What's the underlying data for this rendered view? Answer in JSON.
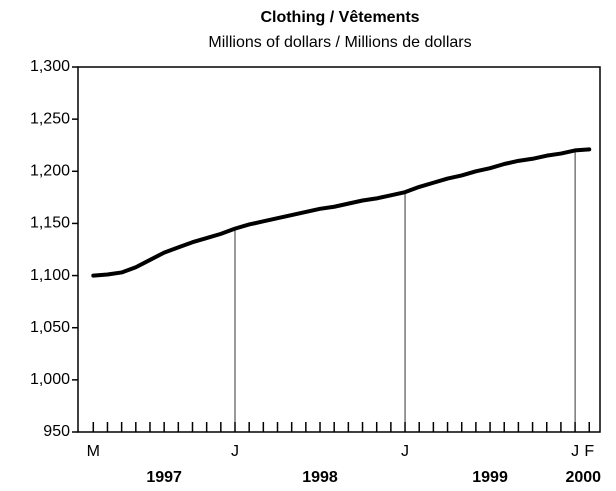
{
  "chart_data": {
    "type": "line",
    "title": "Clothing / Vêtements",
    "subtitle": "Millions of dollars / Millions de dollars",
    "categories": [
      "M",
      null,
      null,
      null,
      null,
      null,
      null,
      null,
      null,
      null,
      "J",
      null,
      null,
      null,
      null,
      null,
      null,
      null,
      null,
      null,
      null,
      null,
      "J",
      null,
      null,
      null,
      null,
      null,
      null,
      null,
      null,
      null,
      null,
      null,
      "J",
      "F"
    ],
    "year_labels": [
      "1997",
      "1998",
      "1999",
      "2000"
    ],
    "series": [
      {
        "color": "#000000",
        "values": [
          1100,
          1101,
          1103,
          1108,
          1115,
          1122,
          1127,
          1132,
          1136,
          1140,
          1145,
          1149,
          1152,
          1155,
          1158,
          1161,
          1164,
          1166,
          1169,
          1172,
          1174,
          1177,
          1180,
          1185,
          1189,
          1193,
          1196,
          1200,
          1203,
          1207,
          1210,
          1212,
          1215,
          1217,
          1220,
          1221
        ]
      }
    ],
    "ylim": [
      950,
      1300
    ],
    "yticks": [
      950,
      {
        "value": 1000,
        "label": "1,000"
      },
      {
        "value": 1050,
        "label": "1,050"
      },
      {
        "value": 1100,
        "label": "1,100"
      },
      {
        "value": 1150,
        "label": "1,150"
      },
      {
        "value": 1200,
        "label": "1,200"
      },
      {
        "value": 1250,
        "label": "1,250"
      },
      {
        "value": 1300,
        "label": "1,300"
      }
    ],
    "grid": false
  }
}
